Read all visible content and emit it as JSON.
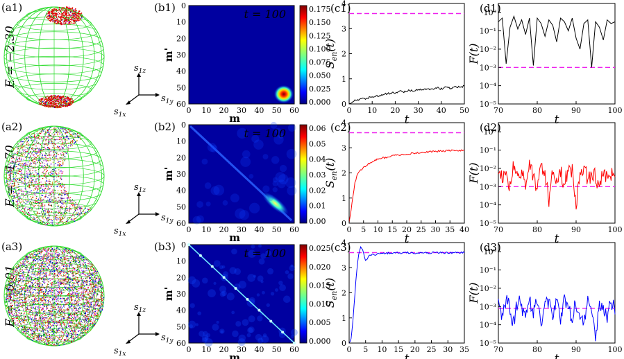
{
  "rows": [
    {
      "energy_label": "E = −2.30",
      "panel_a": "(a1)",
      "panel_b": "(b1)",
      "panel_c": "(c1)",
      "panel_d": "(d1)",
      "time_label": "t = 100",
      "colorbar_ticks": [
        "0.175",
        "0.150",
        "0.125",
        "0.100",
        "0.075",
        "0.050",
        "0.025",
        "0.000"
      ],
      "sen_color": "#000000",
      "f_color": "#000000"
    },
    {
      "energy_label": "E = −1.70",
      "panel_a": "(a2)",
      "panel_b": "(b2)",
      "panel_c": "(c2)",
      "panel_d": "(d2)",
      "time_label": "t = 100",
      "colorbar_ticks": [
        "0.06",
        "0.05",
        "0.04",
        "0.03",
        "0.02",
        "0.01",
        "0.00"
      ],
      "sen_color": "#ff0000",
      "f_color": "#ff0000"
    },
    {
      "energy_label": "E = −0.01",
      "panel_a": "(a3)",
      "panel_b": "(b3)",
      "panel_c": "(c3)",
      "panel_d": "(d3)",
      "time_label": "t = 100",
      "colorbar_ticks": [
        "0.025",
        "0.020",
        "0.015",
        "0.010",
        "0.005",
        "0.000"
      ],
      "sen_color": "#0000ff",
      "f_color": "#0000ff"
    }
  ],
  "axes": {
    "sphere_axes": [
      "s1z",
      "s1y",
      "s1x"
    ],
    "matrix_xlabel": "m",
    "matrix_ylabel": "m'",
    "matrix_ticks": [
      "0",
      "10",
      "20",
      "30",
      "40",
      "50",
      "60"
    ],
    "sen_ylabel": "Sen(t)",
    "sen_xlabel": "t",
    "f_ylabel": "F(t)",
    "f_xlabel": "t",
    "sen_yticks": [
      "0",
      "1",
      "2",
      "3",
      "4"
    ],
    "sen_xticks": [
      [
        "0",
        "10",
        "20",
        "30",
        "40",
        "50"
      ],
      [
        "0",
        "5",
        "10",
        "15",
        "20",
        "25",
        "30",
        "35",
        "40"
      ],
      [
        "0",
        "5",
        "10",
        "15",
        "20",
        "25",
        "30",
        "35"
      ]
    ],
    "f_xticks": [
      [
        "70",
        "80",
        "90",
        "100"
      ],
      [
        "70",
        "80",
        "90",
        "100"
      ],
      [
        "70",
        "80",
        "90",
        "100"
      ]
    ],
    "f_yticks": [
      "10⁰",
      "10⁻¹",
      "10⁻²",
      "10⁻³",
      "10⁻⁴",
      "10⁻⁵"
    ]
  },
  "colors": {
    "sphere_grid": "#33dd33",
    "dashed_ref": "#ee22ee"
  },
  "chart_data": [
    {
      "type": "line",
      "name": "c1",
      "x": [
        0,
        2,
        4,
        6,
        8,
        10,
        12,
        14,
        16,
        18,
        20,
        22,
        24,
        26,
        28,
        30,
        32,
        34,
        36,
        38,
        40,
        42,
        44,
        46,
        48,
        50
      ],
      "y": [
        0.02,
        0.12,
        0.18,
        0.2,
        0.24,
        0.28,
        0.32,
        0.34,
        0.4,
        0.42,
        0.45,
        0.5,
        0.48,
        0.55,
        0.52,
        0.58,
        0.55,
        0.62,
        0.58,
        0.65,
        0.6,
        0.68,
        0.62,
        0.7,
        0.66,
        0.72
      ],
      "reference_y": 3.6,
      "xlim": [
        0,
        50
      ],
      "ylim": [
        0,
        4
      ]
    },
    {
      "type": "line",
      "name": "c2",
      "x": [
        0,
        1,
        2,
        3,
        4,
        5,
        6,
        8,
        10,
        12,
        14,
        16,
        18,
        20,
        22,
        24,
        26,
        28,
        30,
        32,
        34,
        36,
        38,
        40
      ],
      "y": [
        0,
        0.8,
        1.6,
        2.0,
        2.1,
        2.2,
        2.3,
        2.45,
        2.55,
        2.6,
        2.65,
        2.7,
        2.72,
        2.75,
        2.78,
        2.8,
        2.82,
        2.85,
        2.85,
        2.87,
        2.88,
        2.9,
        2.88,
        2.9
      ],
      "reference_y": 3.6,
      "xlim": [
        0,
        40
      ],
      "ylim": [
        0,
        4
      ]
    },
    {
      "type": "line",
      "name": "c3",
      "x": [
        0,
        0.5,
        1,
        1.5,
        2,
        2.5,
        3,
        3.5,
        4,
        5,
        6,
        7,
        8,
        9,
        10,
        12,
        14,
        16,
        18,
        20,
        22,
        24,
        26,
        28,
        30,
        32,
        35
      ],
      "y": [
        0,
        0.1,
        0.6,
        1.5,
        2.4,
        3.1,
        3.6,
        3.85,
        3.75,
        3.3,
        3.45,
        3.55,
        3.5,
        3.6,
        3.55,
        3.58,
        3.6,
        3.57,
        3.6,
        3.58,
        3.6,
        3.59,
        3.6,
        3.6,
        3.59,
        3.6,
        3.6
      ],
      "reference_y": 3.6,
      "xlim": [
        0,
        35
      ],
      "ylim": [
        0,
        4
      ]
    },
    {
      "type": "line",
      "name": "d1",
      "yscale": "log",
      "xlim": [
        70,
        100
      ],
      "ylim_log10": [
        -5,
        0.5
      ],
      "reference_log10": -3,
      "x": [
        70,
        71,
        72,
        73,
        74,
        75,
        76,
        77,
        78,
        79,
        80,
        81,
        82,
        83,
        84,
        85,
        86,
        87,
        88,
        89,
        90,
        91,
        92,
        93,
        94,
        95,
        96,
        97,
        98,
        99,
        100
      ],
      "log10_y": [
        -0.5,
        -0.3,
        -2.8,
        -0.8,
        -0.2,
        -0.9,
        -0.4,
        -1.2,
        -0.3,
        -2.9,
        -0.3,
        -0.6,
        -1.3,
        -0.4,
        -0.7,
        -1.6,
        -0.3,
        -0.5,
        -1.0,
        -0.3,
        -1.4,
        -2.0,
        -0.6,
        -0.4,
        -3.0,
        -0.5,
        -0.8,
        -1.5,
        -0.4,
        -0.6,
        -0.5
      ]
    },
    {
      "type": "line",
      "name": "d2",
      "yscale": "log",
      "xlim": [
        70,
        100
      ],
      "ylim_log10": [
        -5,
        0.5
      ],
      "reference_log10": -3,
      "x": [
        70,
        71,
        72,
        73,
        74,
        75,
        76,
        77,
        78,
        79,
        80,
        81,
        82,
        83,
        84,
        85,
        86,
        87,
        88,
        89,
        90,
        91,
        92,
        93,
        94,
        95,
        96,
        97,
        98,
        99,
        100
      ],
      "log10_y": [
        -2.2,
        -2.6,
        -2.0,
        -3.1,
        -1.8,
        -2.5,
        -2.2,
        -2.8,
        -1.9,
        -2.4,
        -3.3,
        -1.7,
        -2.3,
        -3.8,
        -2.0,
        -2.6,
        -2.1,
        -3.0,
        -1.9,
        -2.2,
        -3.9,
        -2.4,
        -1.8,
        -2.7,
        -2.2,
        -2.5,
        -3.2,
        -2.0,
        -2.6,
        -2.3,
        -2.5
      ]
    },
    {
      "type": "line",
      "name": "d3",
      "yscale": "log",
      "xlim": [
        70,
        100
      ],
      "ylim_log10": [
        -5,
        0.5
      ],
      "reference_log10": -3.1,
      "x": [
        70,
        71,
        72,
        73,
        74,
        75,
        76,
        77,
        78,
        79,
        80,
        81,
        82,
        83,
        84,
        85,
        86,
        87,
        88,
        89,
        90,
        91,
        92,
        93,
        94,
        95,
        96,
        97,
        98,
        99,
        100
      ],
      "log10_y": [
        -2.8,
        -3.5,
        -2.6,
        -3.2,
        -3.9,
        -2.5,
        -3.0,
        -3.6,
        -2.7,
        -3.3,
        -2.6,
        -3.8,
        -3.0,
        -2.7,
        -3.4,
        -2.9,
        -3.6,
        -2.6,
        -3.1,
        -3.5,
        -2.8,
        -3.3,
        -3.7,
        -2.6,
        -3.0,
        -4.8,
        -2.7,
        -3.2,
        -3.5,
        -2.9,
        -3.2
      ]
    }
  ]
}
